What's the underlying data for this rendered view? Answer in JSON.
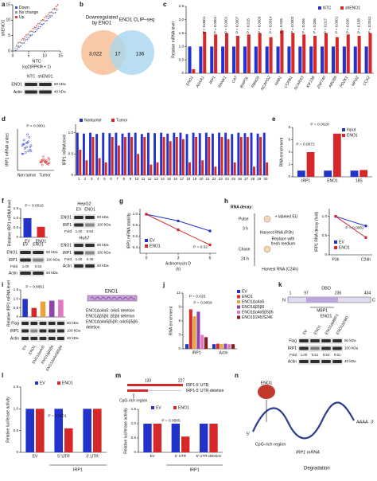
{
  "panels": {
    "a": {
      "label": "a",
      "legend": [
        {
          "name": "Down",
          "color": "#3b5bd6"
        },
        {
          "name": "No change",
          "color": "#9a9a9a"
        },
        {
          "name": "Up",
          "color": "#e0403a"
        }
      ],
      "ylabel": "shENO1",
      "xlabel": "NTC",
      "xunit": "log2(RPKM + 1)",
      "xlim": [
        0,
        15
      ],
      "ylim": [
        0,
        15
      ],
      "xticks": [
        0,
        5,
        10,
        15
      ],
      "yticks": [
        0,
        5,
        10,
        15
      ],
      "blot": {
        "lanes": [
          "NTC",
          "shENO1"
        ],
        "rows": [
          {
            "name": "ENO1",
            "size": "50 kDa"
          },
          {
            "name": "Actin",
            "size": "40 kDa"
          }
        ]
      }
    },
    "b": {
      "label": "b",
      "left": [
        "Downregulated",
        "by ENO1"
      ],
      "right": "ENO1 CLIP–seq",
      "counts": [
        "3,022",
        "17",
        "136"
      ]
    },
    "c": {
      "label": "c",
      "type": "bar",
      "ylabel": "Relative mRNA level",
      "categories": [
        "ENO1",
        "ANXA1",
        "IRP1",
        "RANK1",
        "CAT",
        "BNIP3L",
        "RBM25",
        "NCAPG2",
        "NAB1",
        "COPB1",
        "SCARA3",
        "KIF13B",
        "ZNF740",
        "ABCB9",
        "PDZK1",
        "MPDZ",
        "CCK2"
      ],
      "series": [
        {
          "name": "NTC",
          "color": "#2233cc",
          "values": [
            1,
            1,
            1,
            1,
            1,
            1,
            1,
            1,
            1,
            1,
            1,
            1,
            1,
            1,
            1,
            1,
            1
          ]
        },
        {
          "name": "shENO1",
          "color": "#d62828",
          "values": [
            0.15,
            1.55,
            1.45,
            1.5,
            1.4,
            1.45,
            1.5,
            1.35,
            1.6,
            1.5,
            1.45,
            1.4,
            1.5,
            1.35,
            1.45,
            1.4,
            1.5
          ]
        }
      ],
      "ylim": [
        0,
        2.5
      ],
      "yticks": [
        0,
        0.5,
        {
          "value": 1,
          "label": "1.0"
        },
        1.5,
        {
          "value": 2,
          "label": "2.0"
        },
        2.5
      ],
      "annotations": [
        "P < 0.0001",
        "P = 0.0001",
        "P = 0.0001",
        "P = 0.0007",
        "P = 0.015",
        "P = 0.0009",
        "P = 0.0014",
        "P = 0.045",
        "P = 0.0002",
        "P = 0.006",
        "P = 0.056",
        "P = 0.017",
        "P = 0.0001",
        "P = 0.036",
        "P = 0.158",
        "P = 0.0041"
      ]
    },
    "d": {
      "label": "d",
      "dots": {
        "type": "dot",
        "ylabel": "IRP1 mRNA unites",
        "categories": [
          "Non tumor",
          "Tumor"
        ],
        "colors": [
          "#2233cc",
          "#d62828"
        ],
        "ylim": [
          0,
          1.5
        ],
        "groups": [
          [
            0.6,
            0.7,
            0.8,
            0.9,
            1.0,
            1.1,
            0.75,
            0.85,
            0.95,
            1.2,
            0.65,
            0.9,
            1.05,
            0.8,
            0.7,
            1.3,
            0.95,
            0.85,
            1.0,
            0.6
          ],
          [
            0.3,
            0.25,
            0.35,
            0.4,
            0.3,
            0.2,
            0.45,
            0.35,
            0.3,
            0.25,
            0.4,
            0.3,
            0.35,
            0.5,
            0.28,
            0.32,
            0.38,
            0.22,
            0.3,
            0.36
          ]
        ],
        "annotations": [
          "P < 0.0001"
        ]
      },
      "pairs": {
        "type": "bar",
        "ylabel": "IRP1 mRNA level",
        "categories": [
          "1",
          "2",
          "3",
          "4",
          "5",
          "6",
          "7",
          "8",
          "9",
          "10",
          "11",
          "12",
          "13",
          "14",
          "15",
          "16",
          "17",
          "18",
          "19",
          "20",
          "21",
          "22",
          "23",
          "24",
          "25",
          "26",
          "27",
          "28",
          "29",
          "30"
        ],
        "series": [
          {
            "name": "Nontumor",
            "color": "#2233cc",
            "values": [
              1,
              0.98,
              1,
              0.97,
              1,
              0.99,
              1,
              0.98,
              1,
              1,
              0.97,
              1,
              0.99,
              1,
              0.98,
              1,
              1,
              0.97,
              1,
              0.99,
              1,
              0.98,
              1,
              1,
              0.97,
              1,
              0.99,
              1,
              0.98,
              1
            ]
          },
          {
            "name": "Tumor",
            "color": "#d62828",
            "values": [
              0.6,
              0.35,
              0.9,
              0.4,
              0.3,
              0.9,
              0.7,
              0.9,
              0.9,
              0.5,
              0.9,
              0.25,
              0.3,
              0.9,
              0.8,
              0.9,
              0.85,
              0.3,
              0.9,
              0.35,
              0.9,
              0.2,
              0.9,
              0.85,
              0.3,
              0.9,
              0.9,
              0.2,
              0.9,
              0.3
            ]
          }
        ],
        "ylim": [
          0,
          1.2
        ],
        "yticks": [
          0,
          0.5,
          {
            "value": 1,
            "label": "1.0"
          }
        ]
      }
    },
    "e": {
      "label": "e",
      "type": "bar",
      "ylabel": "RNA enrichment",
      "categories": [
        "IRP1",
        "ENO1",
        "18S"
      ],
      "series": [
        {
          "name": "Input",
          "color": "#2233cc",
          "values": [
            1,
            1,
            1
          ]
        },
        {
          "name": "ENO1",
          "color": "#d62828",
          "values": [
            4,
            7,
            1.1
          ]
        }
      ],
      "ylim": [
        0,
        8
      ],
      "yticks": [
        0,
        2,
        4,
        6,
        8
      ],
      "annotations": [
        "P = 0.0072",
        "P = 0.0028"
      ]
    },
    "f": {
      "label": "f",
      "type": "bar",
      "ylabel": "Relative IRP1 mRNA level",
      "categories": [
        "EV",
        "ENO1"
      ],
      "values": [
        1,
        0.55
      ],
      "colors": [
        "#2233cc",
        "#d62828"
      ],
      "ylim": [
        0,
        1.5
      ],
      "yticks": [
        0,
        0.5,
        {
          "value": 1,
          "label": "1.0"
        },
        1.5
      ],
      "annotations": [
        "P = 0.0018"
      ],
      "blot": {
        "lanes": [
          "EV",
          "ENO1"
        ],
        "rows": [
          {
            "name": "ENO1",
            "size": "50 kDa"
          },
          {
            "name": "IRP1",
            "size": "100 kDa"
          },
          {
            "name": "Fold",
            "fold": [
              "1.00",
              "0.52"
            ]
          },
          {
            "name": "Actin",
            "size": "40 kDa"
          }
        ]
      },
      "cells": [
        {
          "title": "HepG2",
          "lanes": [
            "EV",
            "ENO1"
          ],
          "rows": [
            {
              "name": "ENO1",
              "size": "50 kDa"
            },
            {
              "name": "IRP1",
              "size": "100 kDa"
            },
            {
              "name": "Fold",
              "fold": [
                "1.00",
                "0.54"
              ]
            }
          ]
        },
        {
          "title": "Huh7",
          "rows": [
            {
              "name": "ENO1",
              "size": "50 kDa"
            },
            {
              "name": "IRP1",
              "size": "100 kDa"
            },
            {
              "name": "Fold",
              "fold": [
                "1.00",
                "0.49"
              ]
            },
            {
              "name": "Actin",
              "size": "40 kDa"
            }
          ]
        }
      ]
    },
    "g": {
      "label": "g",
      "type": "line",
      "ylabel": "IRP1 mRNA stability",
      "xlabel": "Actinomycin D",
      "xunit": "(h)",
      "x": [
        0,
        3,
        6
      ],
      "xlim": [
        0,
        6
      ],
      "xticks": [
        0,
        3,
        6
      ],
      "series": [
        {
          "name": "EV",
          "color": "#2233cc",
          "values": [
            1,
            0.88,
            0.7
          ]
        },
        {
          "name": "ENO1",
          "color": "#d62828",
          "values": [
            1,
            0.72,
            0.45
          ]
        }
      ],
      "ylim": [
        0.3,
        1.1
      ],
      "yticks": [
        0.4,
        0.6,
        0.8,
        {
          "value": 1,
          "label": "1.0"
        }
      ],
      "annotations": [
        "P = 0.02"
      ]
    },
    "h": {
      "label": "h",
      "steps": [
        "RNA decay:",
        "Pulse",
        "+ labeled EU",
        "3 h",
        "Harvest RNA (P3h)",
        "Replace with",
        "fresh medium",
        "Chase",
        "24 h",
        "Harvest RNA (C24h)"
      ],
      "chart": {
        "type": "line",
        "ylabel": "IRP1 RNA decay (fold)",
        "categories": [
          "P3h",
          "C24h"
        ],
        "series": [
          {
            "name": "EV",
            "color": "#2233cc",
            "values": [
              1,
              0.75
            ]
          },
          {
            "name": "ENO1",
            "color": "#d62828",
            "values": [
              1,
              0.45
            ]
          }
        ],
        "ylim": [
          0,
          1.2
        ],
        "yticks": [
          0,
          0.5,
          {
            "value": 1,
            "label": "1.0"
          }
        ],
        "annotations": [
          "P = 0.0052"
        ]
      }
    },
    "i": {
      "label": "i",
      "type": "bar",
      "ylabel": "Relative IRP1 mRNA level",
      "categories": [
        "EV",
        "ENO1",
        "ENO1Δα4α5",
        "ENO1Δβ5β6",
        "ENO1Δα4α5β5β6"
      ],
      "values": [
        1,
        0.5,
        0.85,
        0.9,
        0.95
      ],
      "colors": [
        "#2233cc",
        "#d62828",
        "#e8a33c",
        "#8e44ad",
        "#e377c2"
      ],
      "ylim": [
        0,
        1.5
      ],
      "yticks": [
        0,
        0.5,
        {
          "value": 1,
          "label": "1.0"
        },
        1.5
      ],
      "annotations": [
        "P = 0.0061"
      ],
      "blot": {
        "rows": [
          {
            "name": "Flag",
            "size": "50 kDa"
          },
          {
            "name": "IRP1",
            "size": "100 kDa"
          },
          {
            "name": "Actin",
            "size": "40 kDa"
          }
        ]
      },
      "domain": "ENO1",
      "notes": [
        "ENO1Δα4α5: α4α5 deletion",
        "ENO1Δβ5β6: β5β6 deletion",
        "ENO1Δα4α5β5β6: α4α5β5β6",
        "deletion"
      ]
    },
    "j": {
      "label": "j",
      "type": "bar",
      "ylabel": "RNA enrichment",
      "categories": [
        "IRP1",
        "Actin"
      ],
      "series": [
        {
          "name": "EV",
          "color": "#2233cc",
          "values": [
            1,
            1
          ]
        },
        {
          "name": "ENO1",
          "color": "#d62828",
          "values": [
            8.5,
            1.1
          ]
        },
        {
          "name": "ENO1Δα4α5",
          "color": "#e8a33c",
          "values": [
            7,
            1
          ]
        },
        {
          "name": "ENO1Δβ5β6",
          "color": "#8e44ad",
          "values": [
            8,
            1.1
          ]
        },
        {
          "name": "ENO1Δα4α5β5β6",
          "color": "#e377c2",
          "values": [
            3,
            1
          ]
        },
        {
          "name": "ENO1D245/S246",
          "color": "#8b1a1a",
          "values": [
            2.5,
            1
          ]
        }
      ],
      "ylim": [
        0,
        12
      ],
      "yticks": [
        0,
        3,
        6,
        9,
        12
      ],
      "annotations": [
        "P = 0.025",
        "P = 0.0059"
      ]
    },
    "k": {
      "label": "k",
      "dbd": "DBD",
      "positions": [
        "1",
        "97",
        "236",
        "434"
      ],
      "ends": [
        "N",
        "C"
      ],
      "mbp": "MBP1",
      "protein": "ENO1",
      "blot": {
        "lanes": [
          "EV",
          "ENO1",
          "ENO1ΔMBP1",
          "ENO1ΔDBD"
        ],
        "rows": [
          {
            "name": "Flag",
            "size": "50 kDa"
          },
          {
            "name": "IRP1",
            "size": "100 kDa"
          },
          {
            "name": "Fold",
            "fold": [
              "1.00",
              "0.61",
              "0.64",
              "0.61"
            ]
          },
          {
            "name": "Actin",
            "size": "40 kDa"
          }
        ]
      }
    },
    "l": {
      "label": "l",
      "type": "bar",
      "ylabel": "Relative luciferase activity",
      "categories": [
        "EV",
        "5′ UTR",
        "3′ UTR"
      ],
      "series": [
        {
          "name": "EV",
          "color": "#2233cc",
          "values": [
            1,
            1,
            1
          ]
        },
        {
          "name": "ENO1",
          "color": "#d62828",
          "values": [
            1,
            0.55,
            1
          ]
        }
      ],
      "ylim": [
        0,
        1.5
      ],
      "yticks": [
        0,
        0.5,
        {
          "value": 1,
          "label": "1.0"
        },
        1.5
      ],
      "annotations": [
        "P = 0.0001"
      ],
      "group": "IRP1"
    },
    "m": {
      "label": "m",
      "positions": [
        "133",
        "227"
      ],
      "constructs": [
        "IRP1-5′ UTR",
        "IRP1-5′ UTR-deletion"
      ],
      "region": "CpG-rich region",
      "chart": {
        "type": "bar",
        "ylabel": "Relative luciferase activity",
        "categories": [
          "EV",
          "5′ UTR",
          "5′ UTR-deletion"
        ],
        "series": [
          {
            "name": "EV",
            "color": "#2233cc",
            "values": [
              1,
              1,
              1
            ]
          },
          {
            "name": "ENO1",
            "color": "#d62828",
            "values": [
              1,
              0.55,
              1
            ]
          }
        ],
        "ylim": [
          0,
          1.5
        ],
        "yticks": [
          0,
          0.5,
          {
            "value": 1,
            "label": "1.0"
          },
          1.5
        ],
        "annotations": [
          "P = 0.0005"
        ],
        "group": "IRP1"
      }
    },
    "n": {
      "label": "n",
      "texts": [
        "ENO1",
        "CpG-rich region",
        "IRP1 mRNA",
        "Degradation",
        "5′",
        "AAAA",
        "3′"
      ]
    }
  }
}
